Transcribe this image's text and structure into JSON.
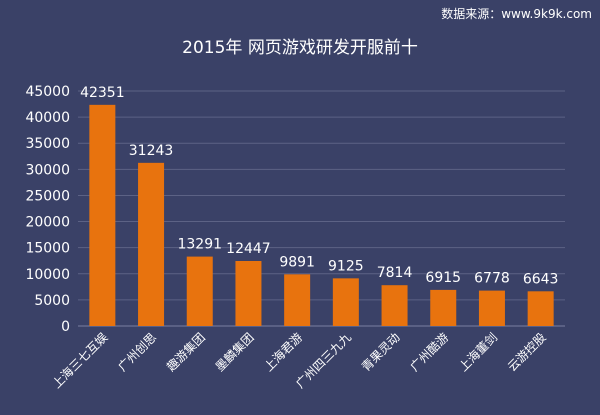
{
  "source_note": "数据来源：www.9k9k.com",
  "chart_data": {
    "type": "bar",
    "title": "2015年 网页游戏研发开服前十",
    "xlabel": "",
    "ylabel": "",
    "categories": [
      "上海三七互娱",
      "广州创思",
      "趣游集团",
      "墨麟集团",
      "上海君游",
      "广州四三九九",
      "青果灵动",
      "广州酷游",
      "上海董剑",
      "云游控股"
    ],
    "values": [
      42351,
      31243,
      13291,
      12447,
      9891,
      9125,
      7814,
      6915,
      6778,
      6643
    ],
    "ylim": [
      0,
      45000
    ],
    "yticks": [
      "0",
      "5000",
      "10000",
      "15000",
      "20000",
      "25000",
      "30000",
      "35000",
      "40000",
      "45000"
    ],
    "grid": true,
    "legend": "none",
    "colors": {
      "background": "#3a4167",
      "bar": "#e8730e",
      "grid": "#5c6285",
      "text": "#ffffff"
    }
  }
}
